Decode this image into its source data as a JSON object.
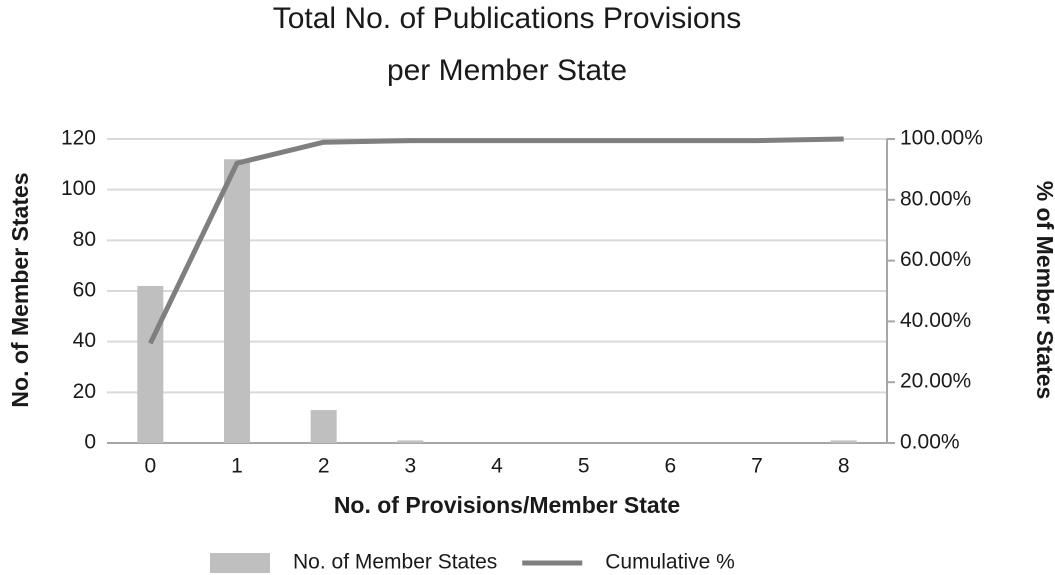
{
  "chart_data": {
    "type": "bar",
    "title": [
      "Total No. of Publications Provisions",
      "per Member State"
    ],
    "x_label": "No. of Provisions/Member State",
    "y_label": "No. of Member States",
    "y2_label": "% of Member States",
    "categories": [
      "0",
      "1",
      "2",
      "3",
      "4",
      "5",
      "6",
      "7",
      "8"
    ],
    "series": [
      {
        "name": "No. of Member States",
        "type": "bar",
        "color": "#bfbfbf",
        "values": [
          62,
          112,
          13,
          1,
          0,
          0,
          0,
          0,
          1
        ]
      },
      {
        "name": "Cumulative %",
        "type": "line",
        "axis": "y2",
        "color": "#7f7f7f",
        "values": [
          32.8,
          92.06,
          98.94,
          99.47,
          99.47,
          99.47,
          99.47,
          99.47,
          100
        ]
      }
    ],
    "ylim": [
      0,
      120
    ],
    "yticks": [
      0,
      20,
      40,
      60,
      80,
      100,
      120
    ],
    "y2lim": [
      0,
      100
    ],
    "y2ticks": [
      {
        "value": 0,
        "label": "0.00%"
      },
      {
        "value": 20,
        "label": "20.00%"
      },
      {
        "value": 40,
        "label": "40.00%"
      },
      {
        "value": 60,
        "label": "60.00%"
      },
      {
        "value": 80,
        "label": "80.00%"
      },
      {
        "value": 100,
        "label": "100.00%"
      }
    ],
    "grid": true,
    "legend": "bottom"
  }
}
